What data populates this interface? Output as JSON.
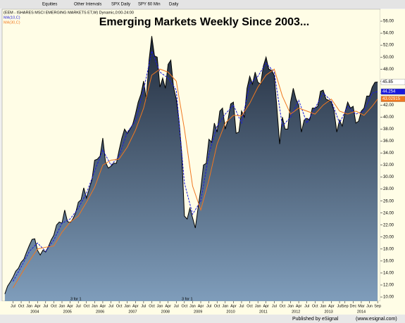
{
  "toolbar": [
    "Equities",
    "Other Intervals",
    "SPX Daily",
    "SPY 60 Min",
    "Daily"
  ],
  "footer": {
    "left": "Published by eSignal",
    "right": "(www.esignal.com)"
  },
  "chart_data": {
    "type": "area-line",
    "title": "Emerging Markets Weekly Since 2003...",
    "annotations": [
      "3 for 1",
      "3 for 1"
    ],
    "grid": false,
    "xlim": [
      "2003-03",
      "2014-10"
    ],
    "ylim": [
      9.3,
      58
    ],
    "yticks": [
      {
        "value": 10,
        "label": "10.00"
      },
      {
        "value": 12,
        "label": "12.00"
      },
      {
        "value": 14,
        "label": "14.00"
      },
      {
        "value": 16,
        "label": "16.00"
      },
      {
        "value": 18,
        "label": "18.00"
      },
      {
        "value": 20,
        "label": "20.00"
      },
      {
        "value": 22,
        "label": "22.00"
      },
      {
        "value": 24,
        "label": "24.00"
      },
      {
        "value": 26,
        "label": "26.00"
      },
      {
        "value": 28,
        "label": "28.00"
      },
      {
        "value": 30,
        "label": "30.00"
      },
      {
        "value": 32,
        "label": "32.00"
      },
      {
        "value": 34,
        "label": "34.00"
      },
      {
        "value": 36,
        "label": "36.00"
      },
      {
        "value": 38,
        "label": "38.00"
      },
      {
        "value": 40,
        "label": "40.00"
      },
      {
        "value": 42,
        "label": "42.00"
      },
      {
        "value": 44,
        "label": "44.00"
      },
      {
        "value": 46,
        "label": "46.00"
      },
      {
        "value": 48,
        "label": "48.00"
      },
      {
        "value": 50,
        "label": "50.00"
      },
      {
        "value": 52,
        "label": "52.00"
      },
      {
        "value": 54,
        "label": "54.00"
      },
      {
        "value": 56,
        "label": "56.00"
      }
    ],
    "xticks": [
      {
        "value": "2003-07",
        "label": "Jul"
      },
      {
        "value": "2003-10",
        "label": "Oct"
      },
      {
        "value": "2004-01",
        "label": "Jan"
      },
      {
        "value": "2004-04",
        "label": "Apr"
      },
      {
        "value": "2004-07",
        "label": "Jul"
      },
      {
        "value": "2004-10",
        "label": "Oct"
      },
      {
        "value": "2005-01",
        "label": "Jan"
      },
      {
        "value": "2005-04",
        "label": "Apr"
      },
      {
        "value": "2005-07",
        "label": "Jul"
      },
      {
        "value": "2005-10",
        "label": "Oct"
      },
      {
        "value": "2006-01",
        "label": "Jan"
      },
      {
        "value": "2006-04",
        "label": "Apr"
      },
      {
        "value": "2006-07",
        "label": "Jul"
      },
      {
        "value": "2006-10",
        "label": "Oct"
      },
      {
        "value": "2007-01",
        "label": "Jan"
      },
      {
        "value": "2007-04",
        "label": "Apr"
      },
      {
        "value": "2007-07",
        "label": "Jul"
      },
      {
        "value": "2007-10",
        "label": "Oct"
      },
      {
        "value": "2008-01",
        "label": "Jan"
      },
      {
        "value": "2008-04",
        "label": "Apr"
      },
      {
        "value": "2008-07",
        "label": "Jul"
      },
      {
        "value": "2008-10",
        "label": "Oct"
      },
      {
        "value": "2009-01",
        "label": "Jan"
      },
      {
        "value": "2009-04",
        "label": "Apr"
      },
      {
        "value": "2009-07",
        "label": "Jul"
      },
      {
        "value": "2009-10",
        "label": "Oct"
      },
      {
        "value": "2010-01",
        "label": "Jan"
      },
      {
        "value": "2010-04",
        "label": "Apr"
      },
      {
        "value": "2010-07",
        "label": "Jul"
      },
      {
        "value": "2010-10",
        "label": "Oct"
      },
      {
        "value": "2011-01",
        "label": "Jan"
      },
      {
        "value": "2011-04",
        "label": "Apr"
      },
      {
        "value": "2011-07",
        "label": "Jul"
      },
      {
        "value": "2011-10",
        "label": "Oct"
      },
      {
        "value": "2012-01",
        "label": "Jan"
      },
      {
        "value": "2012-04",
        "label": "Apr"
      },
      {
        "value": "2012-07",
        "label": "Jul"
      },
      {
        "value": "2012-10",
        "label": "Oct"
      },
      {
        "value": "2013-01",
        "label": "Jan"
      },
      {
        "value": "2013-04",
        "label": "Apr"
      },
      {
        "value": "2013-07",
        "label": "Jul"
      },
      {
        "value": "2013-09",
        "label": "Sep"
      },
      {
        "value": "2013-12",
        "label": "Dec"
      },
      {
        "value": "2014-03",
        "label": "Mar"
      },
      {
        "value": "2014-06",
        "label": "Jun"
      },
      {
        "value": "2014-09",
        "label": "Sep"
      }
    ],
    "years": [
      2004,
      2005,
      2006,
      2007,
      2008,
      2009,
      2010,
      2011,
      2012,
      2013,
      2014
    ],
    "price_tags": [
      {
        "value": 45.85,
        "label": "45.85",
        "color": "#ffffff"
      },
      {
        "value": 44.254,
        "label": "44.254",
        "color": "#1a1adc"
      },
      {
        "value": 43.02915,
        "label": "43.02915",
        "color": "#f07820"
      }
    ],
    "series": [
      {
        "name": "(EEM - ISHARES MSCI EMERGING MARKETS ET,W) Dynamic,0:00-24:00",
        "color": "#000000",
        "x": [
          "2003-04",
          "2003-05",
          "2003-06",
          "2003-07",
          "2003-08",
          "2003-09",
          "2003-10",
          "2003-11",
          "2003-12",
          "2004-01",
          "2004-02",
          "2004-03",
          "2004-04",
          "2004-05",
          "2004-06",
          "2004-07",
          "2004-08",
          "2004-09",
          "2004-10",
          "2004-11",
          "2004-12",
          "2005-01",
          "2005-02",
          "2005-03",
          "2005-04",
          "2005-05",
          "2005-06",
          "2005-07",
          "2005-08",
          "2005-09",
          "2005-10",
          "2005-11",
          "2005-12",
          "2006-01",
          "2006-02",
          "2006-03",
          "2006-04",
          "2006-05",
          "2006-06",
          "2006-07",
          "2006-08",
          "2006-09",
          "2006-10",
          "2006-11",
          "2006-12",
          "2007-01",
          "2007-02",
          "2007-03",
          "2007-04",
          "2007-05",
          "2007-06",
          "2007-07",
          "2007-08",
          "2007-09",
          "2007-10",
          "2007-11",
          "2007-12",
          "2008-01",
          "2008-02",
          "2008-03",
          "2008-04",
          "2008-05",
          "2008-06",
          "2008-07",
          "2008-08",
          "2008-09",
          "2008-10",
          "2008-11",
          "2008-12",
          "2009-01",
          "2009-02",
          "2009-03",
          "2009-04",
          "2009-05",
          "2009-06",
          "2009-07",
          "2009-08",
          "2009-09",
          "2009-10",
          "2009-11",
          "2009-12",
          "2010-01",
          "2010-02",
          "2010-03",
          "2010-04",
          "2010-05",
          "2010-06",
          "2010-07",
          "2010-08",
          "2010-09",
          "2010-10",
          "2010-11",
          "2010-12",
          "2011-01",
          "2011-02",
          "2011-03",
          "2011-04",
          "2011-05",
          "2011-06",
          "2011-07",
          "2011-08",
          "2011-09",
          "2011-10",
          "2011-11",
          "2011-12",
          "2012-01",
          "2012-02",
          "2012-03",
          "2012-04",
          "2012-05",
          "2012-06",
          "2012-07",
          "2012-08",
          "2012-09",
          "2012-10",
          "2012-11",
          "2012-12",
          "2013-01",
          "2013-02",
          "2013-03",
          "2013-04",
          "2013-05",
          "2013-06",
          "2013-07",
          "2013-08",
          "2013-09",
          "2013-10",
          "2013-11",
          "2013-12",
          "2014-01",
          "2014-02",
          "2014-03",
          "2014-04",
          "2014-05",
          "2014-06",
          "2014-07",
          "2014-08",
          "2014-09"
        ],
        "values": [
          10.5,
          11.8,
          12.5,
          13.3,
          14.3,
          14.8,
          15.8,
          16.3,
          17.5,
          18.6,
          19.6,
          19.7,
          17.8,
          17.0,
          17.8,
          17.5,
          18.4,
          19.5,
          20.3,
          22.0,
          22.5,
          22.3,
          24.5,
          22.6,
          22.4,
          23.0,
          24.0,
          25.8,
          26.2,
          28.2,
          26.5,
          28.0,
          29.5,
          32.8,
          33.0,
          33.5,
          36.5,
          32.5,
          31.5,
          31.8,
          32.3,
          32.3,
          34.5,
          36.5,
          38.0,
          37.3,
          38.0,
          38.8,
          40.5,
          42.5,
          43.8,
          46.0,
          43.0,
          49.5,
          53.5,
          50.2,
          50.0,
          45.0,
          46.5,
          44.8,
          48.8,
          49.5,
          45.0,
          43.0,
          39.5,
          34.0,
          23.5,
          23.0,
          24.8,
          23.2,
          21.5,
          24.8,
          28.0,
          32.0,
          32.3,
          36.3,
          35.8,
          39.0,
          37.5,
          41.0,
          41.5,
          38.0,
          39.5,
          42.2,
          42.5,
          37.3,
          37.5,
          41.0,
          40.0,
          44.8,
          46.8,
          45.5,
          47.5,
          45.8,
          45.5,
          48.5,
          50.0,
          48.0,
          47.8,
          47.0,
          41.5,
          35.5,
          40.0,
          38.0,
          38.0,
          42.5,
          44.8,
          43.0,
          42.0,
          37.5,
          39.5,
          39.8,
          39.5,
          41.5,
          41.5,
          41.8,
          44.3,
          44.5,
          43.0,
          42.8,
          42.5,
          41.0,
          37.5,
          39.5,
          38.5,
          40.8,
          42.5,
          41.5,
          41.8,
          39.0,
          39.3,
          41.0,
          41.5,
          43.5,
          43.5,
          45.0,
          45.8,
          45.85
        ]
      },
      {
        "name": "MA(10,C)",
        "color": "#1a1adc",
        "x": [
          "2003-07",
          "2003-10",
          "2004-01",
          "2004-04",
          "2004-07",
          "2004-10",
          "2005-01",
          "2005-04",
          "2005-07",
          "2005-10",
          "2006-01",
          "2006-04",
          "2006-07",
          "2006-10",
          "2007-01",
          "2007-04",
          "2007-07",
          "2007-10",
          "2008-01",
          "2008-04",
          "2008-07",
          "2008-10",
          "2009-01",
          "2009-04",
          "2009-07",
          "2009-10",
          "2010-01",
          "2010-04",
          "2010-07",
          "2010-10",
          "2011-01",
          "2011-04",
          "2011-07",
          "2011-10",
          "2012-01",
          "2012-04",
          "2012-07",
          "2012-10",
          "2013-01",
          "2013-04",
          "2013-07",
          "2013-10",
          "2014-01",
          "2014-04",
          "2014-07",
          "2014-09"
        ],
        "values": [
          12.6,
          15.0,
          17.6,
          19.0,
          17.6,
          19.5,
          22.3,
          23.0,
          24.8,
          27.3,
          31.0,
          34.5,
          32.0,
          33.5,
          37.5,
          39.3,
          44.5,
          51.0,
          47.5,
          46.5,
          44.5,
          29.0,
          23.8,
          26.0,
          33.8,
          38.5,
          40.5,
          42.0,
          39.0,
          45.5,
          46.8,
          49.0,
          47.5,
          38.5,
          40.0,
          42.8,
          39.0,
          41.5,
          44.0,
          42.7,
          39.0,
          41.8,
          40.5,
          41.0,
          44.0,
          44.25
        ]
      },
      {
        "name": "MA(30,C)",
        "color": "#f07820",
        "x": [
          "2003-07",
          "2003-10",
          "2004-01",
          "2004-04",
          "2004-07",
          "2004-10",
          "2005-01",
          "2005-04",
          "2005-07",
          "2005-10",
          "2006-01",
          "2006-04",
          "2006-07",
          "2006-10",
          "2007-01",
          "2007-04",
          "2007-07",
          "2007-10",
          "2008-01",
          "2008-04",
          "2008-07",
          "2008-10",
          "2009-01",
          "2009-04",
          "2009-07",
          "2009-10",
          "2010-01",
          "2010-04",
          "2010-07",
          "2010-10",
          "2011-01",
          "2011-04",
          "2011-07",
          "2011-10",
          "2012-01",
          "2012-04",
          "2012-07",
          "2012-10",
          "2013-01",
          "2013-04",
          "2013-07",
          "2013-10",
          "2014-01",
          "2014-04",
          "2014-07",
          "2014-09"
        ],
        "values": [
          11.5,
          13.8,
          16.0,
          18.0,
          18.3,
          18.5,
          20.8,
          22.5,
          23.5,
          25.8,
          28.3,
          32.0,
          32.8,
          33.0,
          35.0,
          37.8,
          41.5,
          47.0,
          48.0,
          47.5,
          46.0,
          38.0,
          28.5,
          24.5,
          29.5,
          35.5,
          39.0,
          40.3,
          40.2,
          42.3,
          45.0,
          47.0,
          48.0,
          43.5,
          40.5,
          41.5,
          41.0,
          40.5,
          42.0,
          43.0,
          41.0,
          40.5,
          41.0,
          40.3,
          41.8,
          43.0
        ]
      }
    ]
  }
}
